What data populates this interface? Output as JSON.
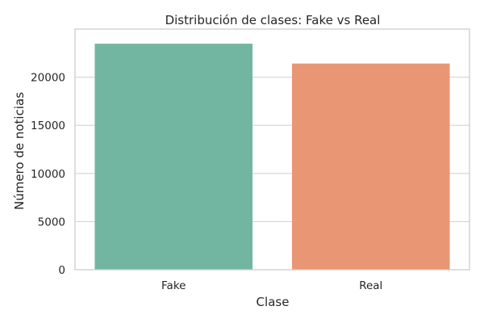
{
  "chart_data": {
    "type": "bar",
    "title": "Distribución de clases: Fake vs Real",
    "xlabel": "Clase",
    "ylabel": "Número de noticias",
    "categories": [
      "Fake",
      "Real"
    ],
    "values": [
      23480,
      21420
    ],
    "colors": [
      "#72b6a1",
      "#e99675"
    ],
    "ylim": [
      0,
      25000
    ],
    "yticks": [
      0,
      5000,
      10000,
      15000,
      20000
    ],
    "grid": true,
    "grid_color": "#d4d4d4",
    "frame_color": "#cccccc"
  }
}
